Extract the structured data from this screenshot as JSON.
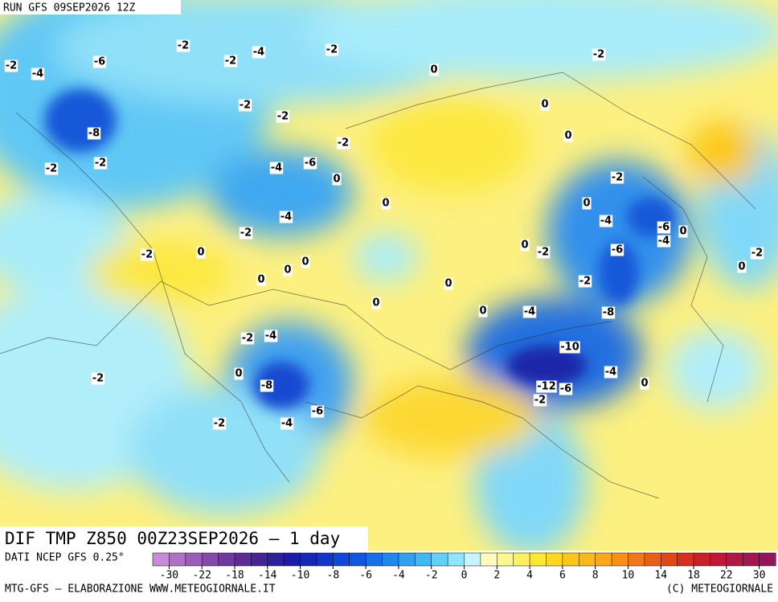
{
  "header": {
    "run": "RUN GFS 09SEP2026 12Z"
  },
  "map": {
    "title": "DIF TMP Z850 00Z23SEP2026 — 1 day",
    "contour_labels": [
      -2,
      -4,
      -6,
      -8,
      -2,
      -2,
      -2,
      -4,
      -2,
      -2,
      0,
      -2,
      -2,
      -2,
      -4,
      -6,
      0,
      -4,
      -2,
      0,
      0,
      0,
      0,
      0,
      -2,
      -4,
      -6,
      -4,
      -2,
      -6,
      -2,
      -8,
      -4,
      -10,
      -12,
      -6,
      -2,
      -4,
      -2,
      0,
      -8,
      -4,
      -2,
      -6,
      -2,
      0,
      0,
      0,
      -2,
      0,
      0,
      0,
      -2,
      0,
      0,
      0,
      -2,
      -4,
      0
    ]
  },
  "footer": {
    "source": "DATI NCEP GFS 0.25°",
    "credit": "MTG-GFS — ELABORAZIONE WWW.METEOGIORNALE.IT",
    "copyright": "(C) METEOGIORNALE"
  },
  "colorbar": {
    "colors": [
      "#c88ad8",
      "#b070c8",
      "#9a5cb8",
      "#844aa8",
      "#6e3a9c",
      "#5a2c94",
      "#462494",
      "#30209c",
      "#1c1ca8",
      "#1428b8",
      "#1038c8",
      "#1048d8",
      "#1058e0",
      "#1870e8",
      "#2088ec",
      "#30a0f0",
      "#40b8f4",
      "#60d0f8",
      "#90e4fc",
      "#c8f4fc",
      "#fcfcc0",
      "#fcf890",
      "#fcf060",
      "#fce830",
      "#fcd820",
      "#fcc818",
      "#fcb818",
      "#fca818",
      "#f89018",
      "#f07818",
      "#e86018",
      "#e04818",
      "#d83020",
      "#cc2028",
      "#c01838",
      "#b01848",
      "#a01850",
      "#901858"
    ],
    "ticks": [
      -30,
      -22,
      -18,
      -14,
      -10,
      -8,
      -6,
      -4,
      -2,
      0,
      2,
      4,
      6,
      8,
      10,
      14,
      18,
      22,
      30
    ]
  }
}
